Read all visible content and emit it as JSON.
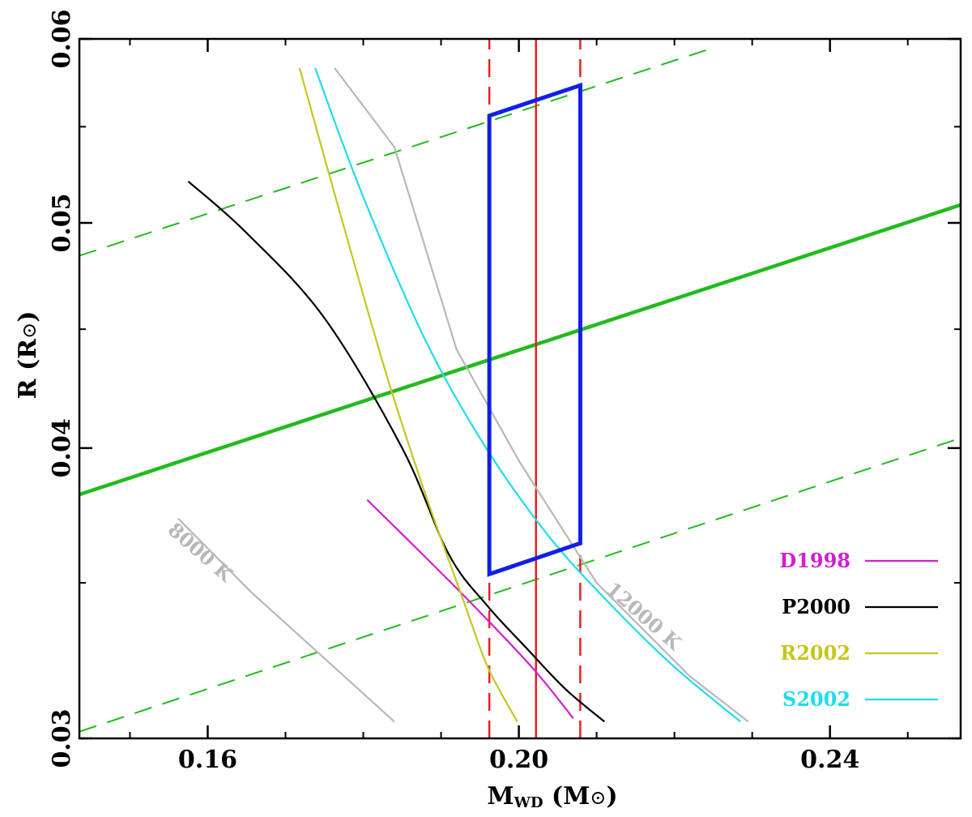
{
  "chart_data": {
    "type": "line",
    "title": "",
    "xlabel": {
      "main": "M",
      "sub": "WD",
      "unit_open": " (M",
      "unit_sym": "⊙",
      "unit_close": ")"
    },
    "ylabel": {
      "main": "R (R",
      "unit_sym": "⊙",
      "unit_close": ")"
    },
    "xlim": [
      0.1435,
      0.2568
    ],
    "ylim": [
      0.03,
      0.06
    ],
    "y_scale": "log",
    "grid": false,
    "x_ticks": {
      "major": [
        0.16,
        0.2,
        0.24
      ],
      "labels": [
        "0.16",
        "0.20",
        "0.24"
      ],
      "minor_step": 0.01
    },
    "y_ticks": {
      "major": [
        0.03,
        0.04,
        0.05,
        0.06
      ],
      "labels": [
        "0.03",
        "0.04",
        "0.05",
        "0.06"
      ],
      "minor": [
        0.035,
        0.045,
        0.055
      ]
    },
    "series": [
      {
        "name": "green-best",
        "color": "#22bb1d",
        "width": 4.5,
        "dash": "none",
        "legend": false,
        "x": [
          0.1435,
          0.2568
        ],
        "y": [
          0.0382,
          0.0509
        ]
      },
      {
        "name": "green-upper",
        "color": "#22bb1d",
        "width": 2,
        "dash": "22 14",
        "legend": false,
        "x": [
          0.1435,
          0.2245
        ],
        "y": [
          0.0484,
          0.0594
        ]
      },
      {
        "name": "green-lower",
        "color": "#22bb1d",
        "width": 2,
        "dash": "22 14",
        "legend": false,
        "x": [
          0.1435,
          0.2568
        ],
        "y": [
          0.0302,
          0.0404
        ]
      },
      {
        "name": "red-center",
        "color": "#e82020",
        "width": 2.5,
        "dash": "none",
        "legend": false,
        "x": [
          0.2022,
          0.2022
        ],
        "y": [
          0.03,
          0.06
        ]
      },
      {
        "name": "red-left",
        "color": "#e82020",
        "width": 2.5,
        "dash": "22 12",
        "legend": false,
        "x": [
          0.1962,
          0.1962
        ],
        "y": [
          0.03,
          0.06
        ]
      },
      {
        "name": "red-right",
        "color": "#e82020",
        "width": 2.5,
        "dash": "22 12",
        "legend": false,
        "x": [
          0.2079,
          0.2079
        ],
        "y": [
          0.03,
          0.06
        ]
      },
      {
        "name": "8000 K",
        "color": "#b8b8b8",
        "width": 2.2,
        "dash": "none",
        "legend": false,
        "x": [
          0.1562,
          0.1655,
          0.184
        ],
        "y": [
          0.0373,
          0.0347,
          0.0305
        ]
      },
      {
        "name": "12000 K",
        "color": "#b8b8b8",
        "width": 2.2,
        "dash": "none",
        "legend": false,
        "x": [
          0.1763,
          0.184,
          0.192,
          0.2,
          0.21,
          0.222,
          0.2295
        ],
        "y": [
          0.0583,
          0.0539,
          0.0441,
          0.0395,
          0.035,
          0.0319,
          0.0305
        ]
      },
      {
        "name": "D1998",
        "color": "#d21ed2",
        "width": 2.2,
        "dash": "none",
        "legend": true,
        "x": [
          0.1805,
          0.188,
          0.195,
          0.202,
          0.207
        ],
        "y": [
          0.038,
          0.0359,
          0.034,
          0.0321,
          0.0306
        ]
      },
      {
        "name": "P2000",
        "color": "#000000",
        "width": 2.2,
        "dash": "none",
        "legend": true,
        "x": [
          0.1575,
          0.165,
          0.175,
          0.185,
          0.191,
          0.196,
          0.201,
          0.206,
          0.211
        ],
        "y": [
          0.0521,
          0.0495,
          0.0455,
          0.04,
          0.036,
          0.0342,
          0.0328,
          0.0315,
          0.0305
        ]
      },
      {
        "name": "R2002",
        "color": "#c6c61e",
        "width": 2.2,
        "dash": "none",
        "legend": true,
        "x": [
          0.1718,
          0.177,
          0.183,
          0.188,
          0.193,
          0.196,
          0.1998
        ],
        "y": [
          0.0583,
          0.0505,
          0.043,
          0.0382,
          0.0343,
          0.0322,
          0.0305
        ]
      },
      {
        "name": "S2002",
        "color": "#1edcf0",
        "width": 2.2,
        "dash": "none",
        "legend": true,
        "x": [
          0.1738,
          0.18,
          0.188,
          0.196,
          0.204,
          0.212,
          0.22,
          0.2285
        ],
        "y": [
          0.0583,
          0.0513,
          0.0445,
          0.0399,
          0.0366,
          0.0342,
          0.0322,
          0.0305
        ]
      }
    ],
    "box": {
      "color": "#1020e6",
      "width": 5,
      "x": [
        0.1962,
        0.2079,
        0.2079,
        0.1962,
        0.1962
      ],
      "y": [
        0.0556,
        0.0573,
        0.0364,
        0.0353,
        0.0556
      ]
    },
    "annotations": [
      {
        "text": "8000 K",
        "x": 0.1585,
        "y": 0.0359,
        "angle": 41,
        "color": "#b8b8b8"
      },
      {
        "text": "12000 K",
        "x": 0.2155,
        "y": 0.0337,
        "angle": 41,
        "color": "#b8b8b8"
      }
    ],
    "legend": {
      "position": "bottom-right"
    }
  }
}
